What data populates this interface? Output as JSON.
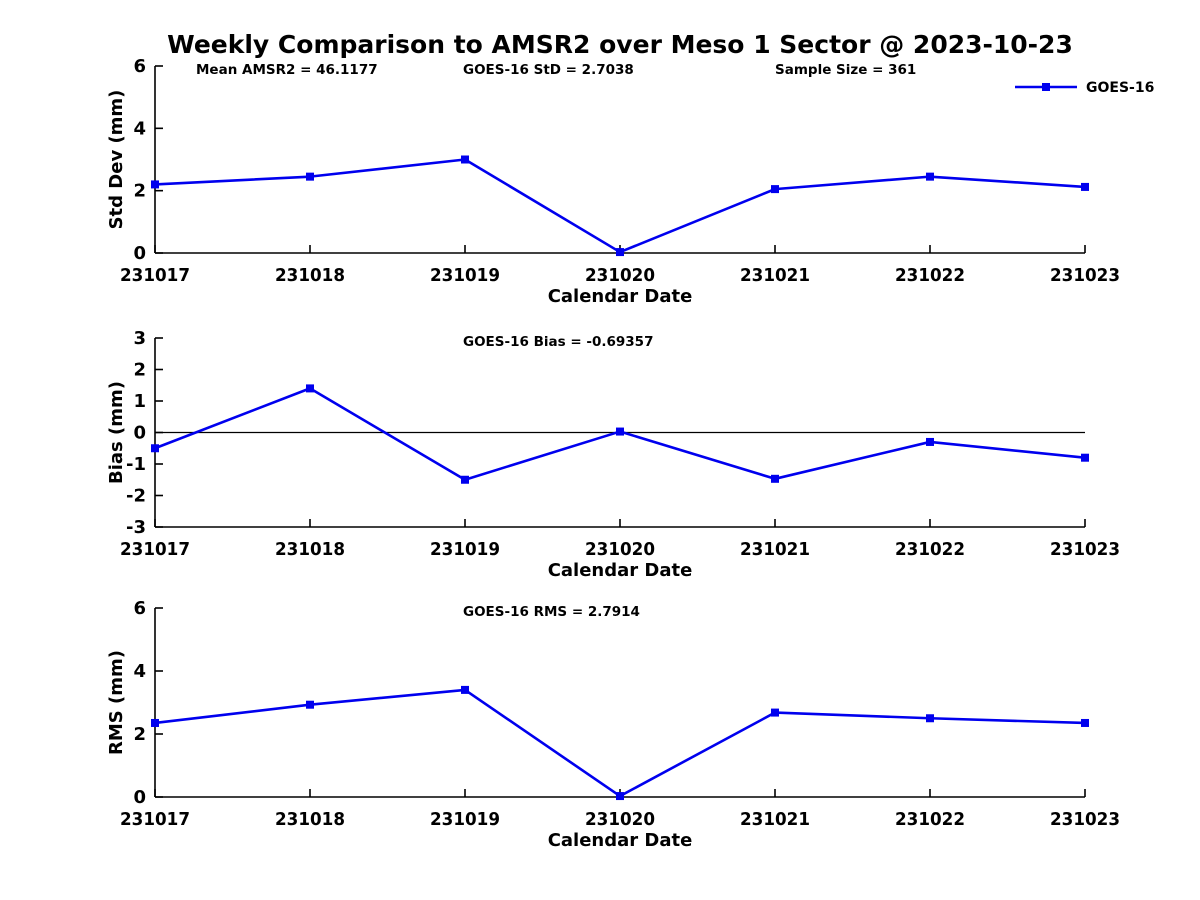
{
  "title": "Weekly Comparison to AMSR2 over Meso 1 Sector @ 2023-10-23",
  "colors": {
    "line": "#0000EE",
    "axis": "#000000",
    "text": "#000000",
    "background": "#FFFFFF"
  },
  "legend": {
    "label": "GOES-16",
    "position": "top-right"
  },
  "chart_data": [
    {
      "type": "line",
      "ylabel": "Std Dev (mm)",
      "xlabel": "Calendar Date",
      "categories": [
        "231017",
        "231018",
        "231019",
        "231020",
        "231021",
        "231022",
        "231023"
      ],
      "series": [
        {
          "name": "GOES-16",
          "values": [
            2.2,
            2.45,
            3.0,
            0.03,
            2.05,
            2.45,
            2.12
          ]
        }
      ],
      "ylim": [
        0,
        6
      ],
      "yticks": [
        0,
        2,
        4,
        6
      ],
      "grid": false,
      "zero_line": false,
      "show_legend": true,
      "annotations": [
        "Mean AMSR2 = 46.1177",
        "GOES-16 StD = 2.7038",
        "Sample Size = 361"
      ]
    },
    {
      "type": "line",
      "ylabel": "Bias (mm)",
      "xlabel": "Calendar Date",
      "categories": [
        "231017",
        "231018",
        "231019",
        "231020",
        "231021",
        "231022",
        "231023"
      ],
      "series": [
        {
          "name": "GOES-16",
          "values": [
            -0.5,
            1.4,
            -1.5,
            0.03,
            -1.47,
            -0.3,
            -0.8
          ]
        }
      ],
      "ylim": [
        -3,
        3
      ],
      "yticks": [
        -3,
        -2,
        -1,
        0,
        1,
        2,
        3
      ],
      "grid": false,
      "zero_line": true,
      "show_legend": false,
      "annotations": [
        "GOES-16 Bias  = -0.69357"
      ]
    },
    {
      "type": "line",
      "ylabel": "RMS (mm)",
      "xlabel": "Calendar Date",
      "categories": [
        "231017",
        "231018",
        "231019",
        "231020",
        "231021",
        "231022",
        "231023"
      ],
      "series": [
        {
          "name": "GOES-16",
          "values": [
            2.35,
            2.93,
            3.4,
            0.03,
            2.68,
            2.5,
            2.35
          ]
        }
      ],
      "ylim": [
        0,
        6
      ],
      "yticks": [
        0,
        2,
        4,
        6
      ],
      "grid": false,
      "zero_line": false,
      "show_legend": false,
      "annotations": [
        "GOES-16 RMS  = 2.7914"
      ]
    }
  ]
}
